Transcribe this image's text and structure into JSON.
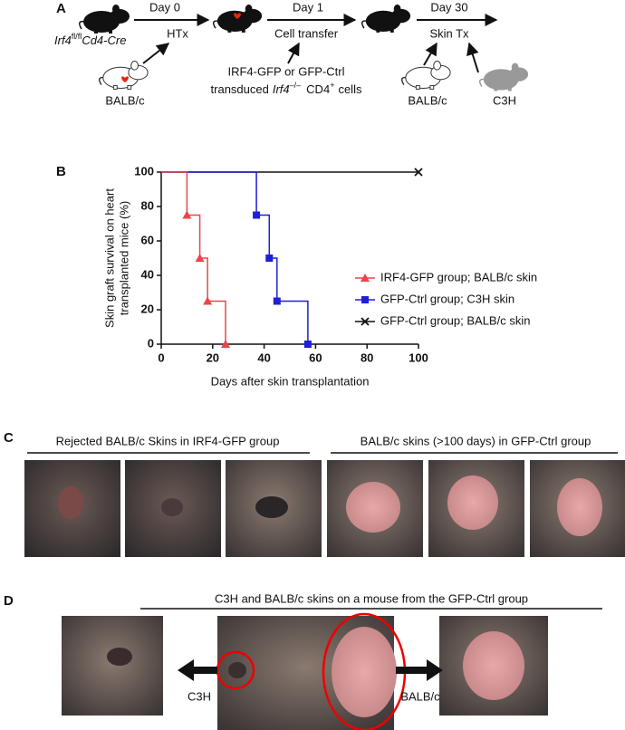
{
  "panel_a": {
    "label": "A",
    "recipient": {
      "gene": "Irf4",
      "sup": "fl/fl",
      "cre": "Cd4-Cre"
    },
    "day0": "Day 0",
    "htx": "HTx",
    "donor1": "BALB/c",
    "day1": "Day 1",
    "transfer": "Cell transfer",
    "cells_line1": "IRF4-GFP or GFP-Ctrl",
    "cells_line2": {
      "pre": "transduced",
      "gene": "Irf4",
      "sup": "–/–",
      "cd4": "CD4",
      "plus": "+",
      "post": "cells"
    },
    "day30": "Day 30",
    "skin_tx": "Skin Tx",
    "donor2": "BALB/c",
    "donor3": "C3H"
  },
  "panel_b_label": "B",
  "chart_data": {
    "type": "step",
    "xlabel": "Days after skin transplantation",
    "ylabel": [
      "Skin graft survival on heart",
      "transplanted mice (%)"
    ],
    "xlim": [
      0,
      100
    ],
    "xticks": [
      0,
      20,
      40,
      60,
      80,
      100
    ],
    "ylim": [
      0,
      100
    ],
    "yticks": [
      0,
      20,
      40,
      60,
      80,
      100
    ],
    "legend": "right",
    "series": [
      {
        "name": "IRF4-GFP group; BALB/c skin",
        "color": "#e8464b",
        "marker": "triangle",
        "x": [
          0,
          10,
          15,
          18,
          25
        ],
        "values": [
          100,
          75,
          50,
          25,
          0
        ]
      },
      {
        "name": "GFP-Ctrl group; C3H skin",
        "color": "#1f1fd6",
        "marker": "square",
        "x": [
          0,
          37,
          42,
          45,
          57
        ],
        "values": [
          100,
          75,
          50,
          25,
          0
        ]
      },
      {
        "name": "GFP-Ctrl group; BALB/c skin",
        "color": "#111111",
        "marker": "cross",
        "x": [
          0,
          100
        ],
        "values": [
          100,
          100
        ]
      }
    ]
  },
  "panel_c": {
    "label": "C",
    "left_header": "Rejected BALB/c Skins in IRF4-GFP group",
    "right_header": "BALB/c skins (>100 days) in GFP-Ctrl group"
  },
  "panel_d": {
    "label": "D",
    "header": "C3H and BALB/c skins on a mouse from the GFP-Ctrl group",
    "left_arrow": "C3H",
    "right_arrow": "BALB/c"
  }
}
